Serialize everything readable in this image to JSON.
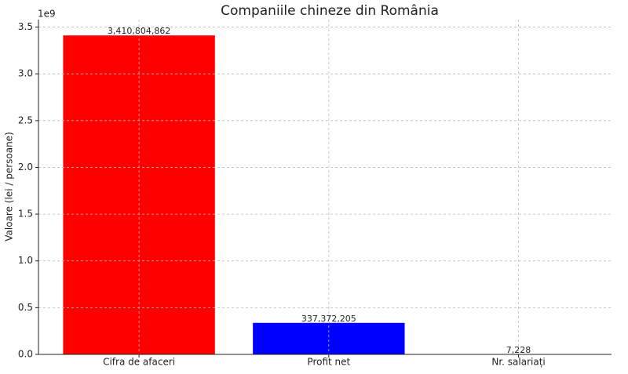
{
  "chart_data": {
    "type": "bar",
    "title": "Companiile chineze din România",
    "y_label": "Valoare (lei / persoane)",
    "y_offset_label": "1e9",
    "categories": [
      "Cifra de afaceri",
      "Profit net",
      "Nr. salariați"
    ],
    "values": [
      3410804862,
      337372205,
      7228
    ],
    "value_labels": [
      "3,410,804,862",
      "337,372,205",
      "7,228"
    ],
    "colors": [
      "red",
      "blue",
      "green"
    ],
    "ylim": [
      0,
      3580000000
    ],
    "yticks": [
      {
        "value": 0,
        "label": "0.0"
      },
      {
        "value": 500000000,
        "label": "0.5"
      },
      {
        "value": 1000000000,
        "label": "1.0"
      },
      {
        "value": 1500000000,
        "label": "1.5"
      },
      {
        "value": 2000000000,
        "label": "2.0"
      },
      {
        "value": 2500000000,
        "label": "2.5"
      },
      {
        "value": 3000000000,
        "label": "3.0"
      },
      {
        "value": 3500000000,
        "label": "3.5"
      }
    ],
    "grid": true
  }
}
